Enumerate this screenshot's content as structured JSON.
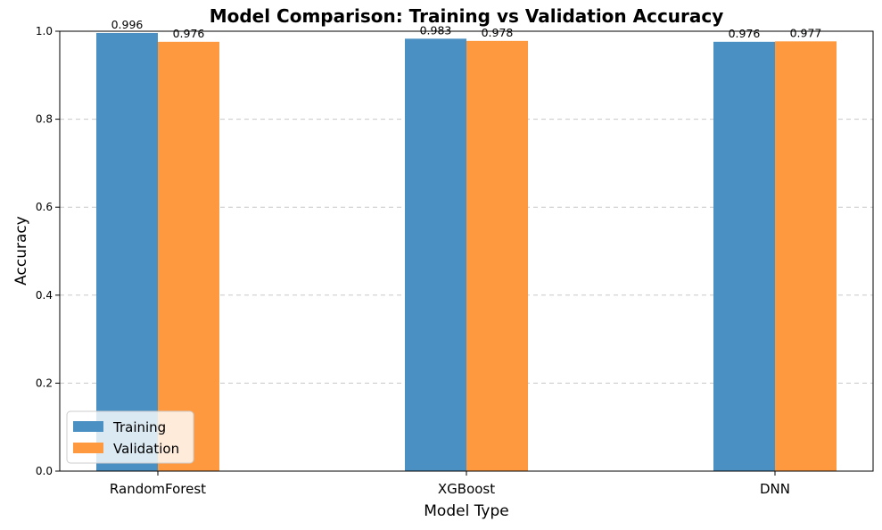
{
  "chart_data": {
    "type": "bar",
    "title": "Model Comparison: Training vs Validation Accuracy",
    "xlabel": "Model Type",
    "ylabel": "Accuracy",
    "categories": [
      "RandomForest",
      "XGBoost",
      "DNN"
    ],
    "series": [
      {
        "name": "Training",
        "values": [
          0.996,
          0.983,
          0.976
        ],
        "labels": [
          "0.996",
          "0.983",
          "0.976"
        ],
        "color": "#4a90c2"
      },
      {
        "name": "Validation",
        "values": [
          0.976,
          0.978,
          0.977
        ],
        "labels": [
          "0.976",
          "0.978",
          "0.977"
        ],
        "color": "#ff9940"
      }
    ],
    "ylim": [
      0,
      1.0
    ],
    "yticks": [
      "0.0",
      "0.2",
      "0.4",
      "0.6",
      "0.8",
      "1.0"
    ],
    "grid": "y-dashed",
    "legend_position": "lower-left"
  }
}
